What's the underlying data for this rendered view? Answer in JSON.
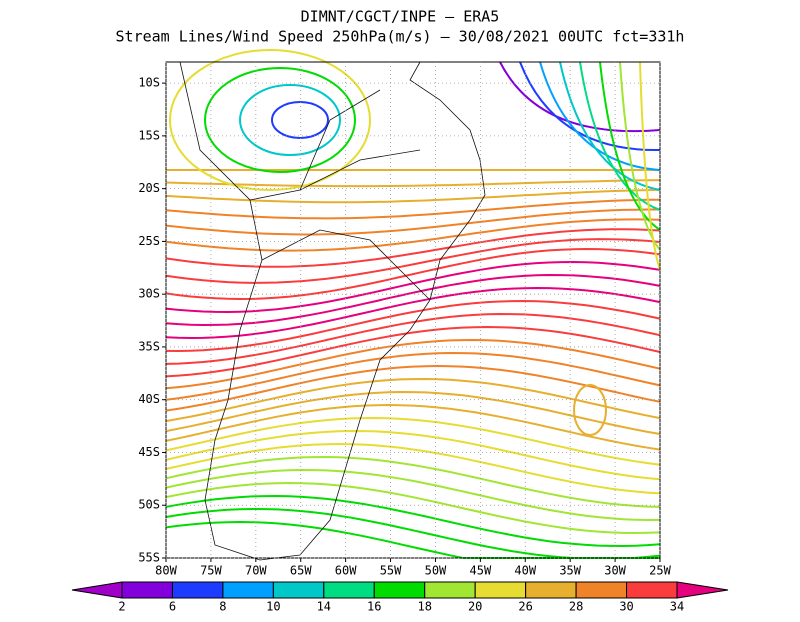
{
  "header": {
    "title": "DIMNT/CGCT/INPE  –  ERA5",
    "subtitle": "Stream Lines/Wind Speed 250hPa(m/s)  –   30/08/2021 00UTC fct=331h"
  },
  "map": {
    "xlim": [
      -80,
      -25
    ],
    "ylim": [
      -55,
      -8
    ],
    "xticks": [
      {
        "value": -80,
        "label": "80W"
      },
      {
        "value": -75,
        "label": "75W"
      },
      {
        "value": -70,
        "label": "70W"
      },
      {
        "value": -65,
        "label": "65W"
      },
      {
        "value": -60,
        "label": "60W"
      },
      {
        "value": -55,
        "label": "55W"
      },
      {
        "value": -50,
        "label": "50W"
      },
      {
        "value": -45,
        "label": "45W"
      },
      {
        "value": -40,
        "label": "40W"
      },
      {
        "value": -35,
        "label": "35W"
      },
      {
        "value": -30,
        "label": "30W"
      },
      {
        "value": -25,
        "label": "25W"
      }
    ],
    "yticks": [
      {
        "value": -10,
        "label": "10S"
      },
      {
        "value": -15,
        "label": "15S"
      },
      {
        "value": -20,
        "label": "20S"
      },
      {
        "value": -25,
        "label": "25S"
      },
      {
        "value": -30,
        "label": "30S"
      },
      {
        "value": -35,
        "label": "35S"
      },
      {
        "value": -40,
        "label": "40S"
      },
      {
        "value": -45,
        "label": "45S"
      },
      {
        "value": -50,
        "label": "50S"
      },
      {
        "value": -55,
        "label": "55S"
      }
    ],
    "grid": true
  },
  "colorbar": {
    "levels": [
      2,
      6,
      8,
      10,
      14,
      16,
      18,
      20,
      26,
      28,
      30,
      34
    ],
    "colors": [
      "#a000c8",
      "#8200dc",
      "#1e3cff",
      "#00a0ff",
      "#00c8c8",
      "#00dc82",
      "#00dc00",
      "#a0e632",
      "#e6dc32",
      "#e6af2d",
      "#f08228",
      "#fa3c3c",
      "#e6007d"
    ]
  }
}
